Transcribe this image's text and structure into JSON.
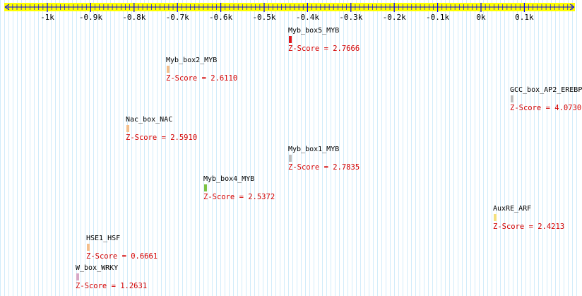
{
  "colors": {
    "ruler_fill": "#ffff00",
    "ruler_line": "#0000ff",
    "grid": "#d2ecfa",
    "score_text": "#d40000"
  },
  "chart_data": {
    "type": "ruler-track",
    "xlim": [
      -1100,
      230
    ],
    "ticks": [
      {
        "value": -1000,
        "label": "-1k"
      },
      {
        "value": -900,
        "label": "-0.9k"
      },
      {
        "value": -800,
        "label": "-0.8k"
      },
      {
        "value": -700,
        "label": "-0.7k"
      },
      {
        "value": -600,
        "label": "-0.6k"
      },
      {
        "value": -500,
        "label": "-0.5k"
      },
      {
        "value": -400,
        "label": "-0.4k"
      },
      {
        "value": -300,
        "label": "-0.3k"
      },
      {
        "value": -200,
        "label": "-0.2k"
      },
      {
        "value": -100,
        "label": "-0.1k"
      },
      {
        "value": 0,
        "label": "0k"
      },
      {
        "value": 100,
        "label": "0.1k"
      }
    ],
    "elements": [
      {
        "name": "Myb_box5_MYB",
        "position": -445,
        "row": 0,
        "color": "#e0151b",
        "score_text": "Z-Score = 2.7666"
      },
      {
        "name": "Myb_box2_MYB",
        "position": -727,
        "row": 1,
        "color": "#f4bf8c",
        "score_text": "Z-Score = 2.6110"
      },
      {
        "name": "GCC_box_AP2_EREBP",
        "position": 67,
        "row": 2,
        "color": "#bfbfbf",
        "score_text": "Z-Score = 4.0730"
      },
      {
        "name": "Nac_box_NAC",
        "position": -819,
        "row": 3,
        "color": "#f4bf8c",
        "score_text": "Z-Score = 2.5910"
      },
      {
        "name": "Myb_box1_MYB",
        "position": -445,
        "row": 4,
        "color": "#bfbfbf",
        "score_text": "Z-Score = 2.7835"
      },
      {
        "name": "Myb_box4_MYB",
        "position": -640,
        "row": 5,
        "color": "#7dc242",
        "score_text": "Z-Score = 2.5372"
      },
      {
        "name": "AuxRE_ARF",
        "position": 28,
        "row": 6,
        "color": "#f4e07d",
        "score_text": "Z-Score = 2.4213"
      },
      {
        "name": "HSE1_HSF",
        "position": -911,
        "row": 7,
        "color": "#f4bf8c",
        "score_text": "Z-Score = 0.6661"
      },
      {
        "name": "W_box_WRKY",
        "position": -935,
        "row": 8,
        "color": "#d8a8c6",
        "score_text": "Z-Score = 1.2631"
      }
    ]
  }
}
